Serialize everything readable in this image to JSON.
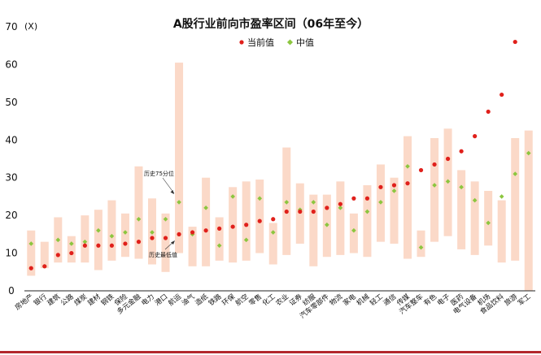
{
  "chart_data": {
    "type": "range_dot",
    "title": "A股行业前向市盈率区间（06年至今）",
    "ylabel": "(X)",
    "ylim": [
      0,
      70
    ],
    "yticks": [
      0,
      10,
      20,
      30,
      40,
      50,
      60,
      70
    ],
    "legend": {
      "placement": "top-center",
      "current_label": "当前值",
      "median_label": "中值"
    },
    "annotations": {
      "pct75": "历史75分位",
      "hist_min": "历史最低值"
    },
    "colors": {
      "range": "#fbd9c8",
      "current": "#e0201b",
      "median": "#8cc63f",
      "axis": "#222222",
      "frame": "#b3282d"
    },
    "categories": [
      "房地产",
      "银行",
      "建筑",
      "公路",
      "煤炭",
      "建材",
      "钢铁",
      "保险",
      "多元金融",
      "电力",
      "港口",
      "航运",
      "油气",
      "造纸",
      "铁路",
      "环保",
      "航空",
      "零售",
      "化工",
      "农业",
      "证券",
      "纺服",
      "汽车零部件",
      "物流",
      "家电",
      "机械",
      "轻工",
      "通信",
      "传媒",
      "汽车整车",
      "有色",
      "电子",
      "医药",
      "电气设备",
      "机场",
      "食品饮料",
      "旅游",
      "军工"
    ],
    "series": [
      {
        "name": "range_low",
        "values": [
          4,
          6,
          7.5,
          7.5,
          7.5,
          5.5,
          8,
          9,
          8.5,
          7,
          5,
          10,
          6.5,
          6.5,
          8,
          7.5,
          8,
          10,
          7,
          9.5,
          12.5,
          6.5,
          9,
          9.5,
          10,
          9,
          13,
          12.5,
          8.5,
          9,
          13,
          14.5,
          11,
          9.5,
          12,
          7.5,
          8,
          0
        ]
      },
      {
        "name": "range_high",
        "values": [
          16,
          13,
          19.5,
          14.5,
          20,
          21.5,
          24,
          20.5,
          33,
          24.5,
          20.5,
          60.5,
          17,
          30,
          19.5,
          27.5,
          29,
          29.5,
          18,
          38,
          28.5,
          25.5,
          25.5,
          29,
          20.5,
          28,
          33.5,
          30,
          41,
          16,
          40.5,
          43,
          32,
          29,
          26.5,
          24,
          40.5,
          42.5
        ]
      },
      {
        "name": "当前值",
        "values": [
          6,
          6.5,
          9.5,
          10,
          12,
          12,
          12,
          12.5,
          13,
          14,
          14,
          15,
          15.5,
          16,
          16.5,
          17,
          17.5,
          18.5,
          19,
          21,
          21,
          21,
          22,
          23,
          24.5,
          24.5,
          27.5,
          28,
          28.5,
          32,
          33.5,
          35,
          37,
          41,
          47.5,
          52,
          66,
          null
        ]
      },
      {
        "name": "中值",
        "values": [
          12.5,
          6.5,
          13.5,
          12.5,
          13,
          16,
          14.5,
          15.5,
          19,
          15.5,
          19,
          23.5,
          15,
          22,
          12,
          25,
          13.5,
          24.5,
          15.5,
          23.5,
          21.5,
          23.5,
          17.5,
          22,
          16,
          21,
          23.5,
          26.5,
          33,
          11.5,
          28,
          29,
          27.5,
          24,
          18,
          25,
          31,
          36.5
        ]
      }
    ]
  }
}
